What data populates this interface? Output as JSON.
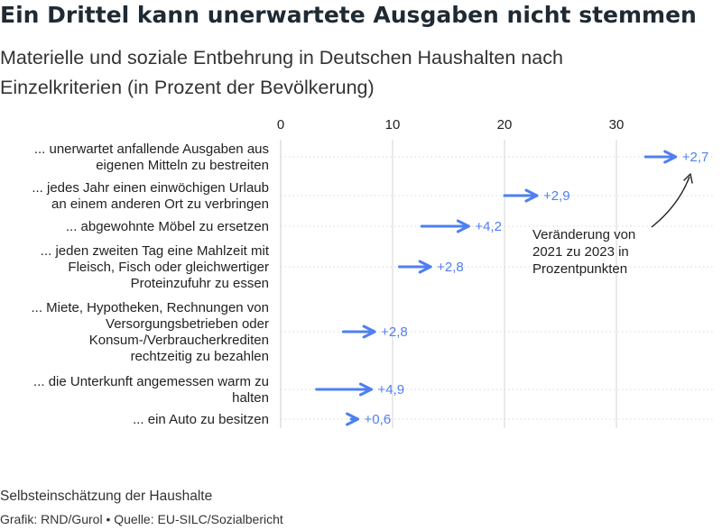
{
  "title": "Ein Drittel kann unerwartete Ausgaben nicht stemmen",
  "subtitle": "Materielle und soziale Entbehrung in Deutschen Haushalten nach Einzelkriterien (in Prozent der Bevölkerung)",
  "note": "Selbsteinschätzung der Haushalte",
  "source": "Grafik: RND/Gurol • Quelle: EU-SILC/Sozialbericht",
  "colors": {
    "arrow": "#4f7ff0",
    "label": "#4f7ff0",
    "grid": "#d4d4d4",
    "axis": "#cccccc"
  },
  "chart_data": {
    "type": "arrow",
    "xlim": [
      0,
      38
    ],
    "ticks": [
      0,
      10,
      20,
      30
    ],
    "annotation": "Veränderung von 2021 zu 2023 in Prozentpunkten",
    "rows": [
      {
        "label": [
          "... unerwartet anfallende Ausgaben aus",
          "eigenen Mitteln zu bestreiten"
        ],
        "from": 32.6,
        "to": 35.3,
        "change": "+2,7"
      },
      {
        "label": [
          "... jedes Jahr einen einwöchigen Urlaub",
          "an einem anderen Ort zu verbringen"
        ],
        "from": 20.0,
        "to": 22.9,
        "change": "+2,9"
      },
      {
        "label": [
          "... abgewohnte Möbel zu ersetzen"
        ],
        "from": 12.6,
        "to": 16.8,
        "change": "+4,2"
      },
      {
        "label": [
          "... jeden zweiten Tag eine Mahlzeit mit",
          "Fleisch, Fisch oder gleichwertiger",
          "Proteinzufuhr zu essen"
        ],
        "from": 10.6,
        "to": 13.4,
        "change": "+2,8"
      },
      {
        "label": [
          "... Miete, Hypotheken, Rechnungen von",
          "Versorgungsbetrieben oder",
          "Konsum-/Verbraucherkrediten",
          "rechtzeitig zu bezahlen"
        ],
        "from": 5.6,
        "to": 8.4,
        "change": "+2,8"
      },
      {
        "label": [
          "... die Unterkunft angemessen warm zu",
          "halten"
        ],
        "from": 3.2,
        "to": 8.1,
        "change": "+4,9"
      },
      {
        "label": [
          "... ein Auto zu besitzen"
        ],
        "from": 6.3,
        "to": 6.9,
        "change": "+0,6"
      }
    ]
  }
}
